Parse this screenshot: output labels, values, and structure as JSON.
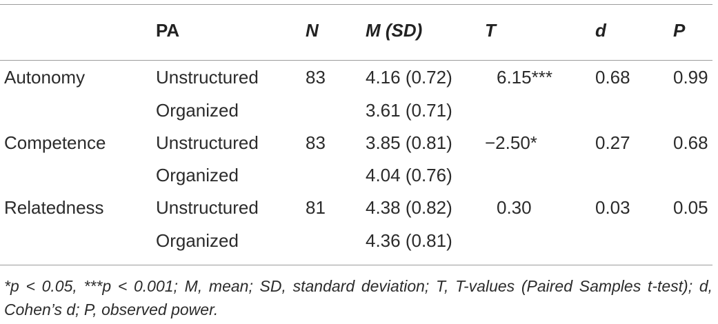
{
  "table": {
    "headers": {
      "variable": "",
      "pa": "PA",
      "n": "N",
      "m_sd": "M (SD)",
      "t": "T",
      "d": "d",
      "p": "P"
    },
    "rows": [
      {
        "variable": "Autonomy",
        "pa": "Unstructured",
        "n": "83",
        "m_sd": "4.16 (0.72)",
        "t": "6.15***",
        "d": "0.68",
        "p": "0.99"
      },
      {
        "variable": "",
        "pa": "Organized",
        "n": "",
        "m_sd": "3.61 (0.71)",
        "t": "",
        "d": "",
        "p": ""
      },
      {
        "variable": "Competence",
        "pa": "Unstructured",
        "n": "83",
        "m_sd": "3.85 (0.81)",
        "t": "−2.50*",
        "d": "0.27",
        "p": "0.68"
      },
      {
        "variable": "",
        "pa": "Organized",
        "n": "",
        "m_sd": "4.04 (0.76)",
        "t": "",
        "d": "",
        "p": ""
      },
      {
        "variable": "Relatedness",
        "pa": "Unstructured",
        "n": "81",
        "m_sd": "4.38 (0.82)",
        "t": "0.30",
        "d": "0.03",
        "p": "0.05"
      },
      {
        "variable": "",
        "pa": "Organized",
        "n": "",
        "m_sd": "4.36 (0.81)",
        "t": "",
        "d": "",
        "p": ""
      }
    ],
    "footnote": "*p < 0.05, ***p < 0.001; M, mean; SD, standard deviation; T, T-values (Paired Samples t-test); d, Cohen’s d; P, observed power."
  }
}
